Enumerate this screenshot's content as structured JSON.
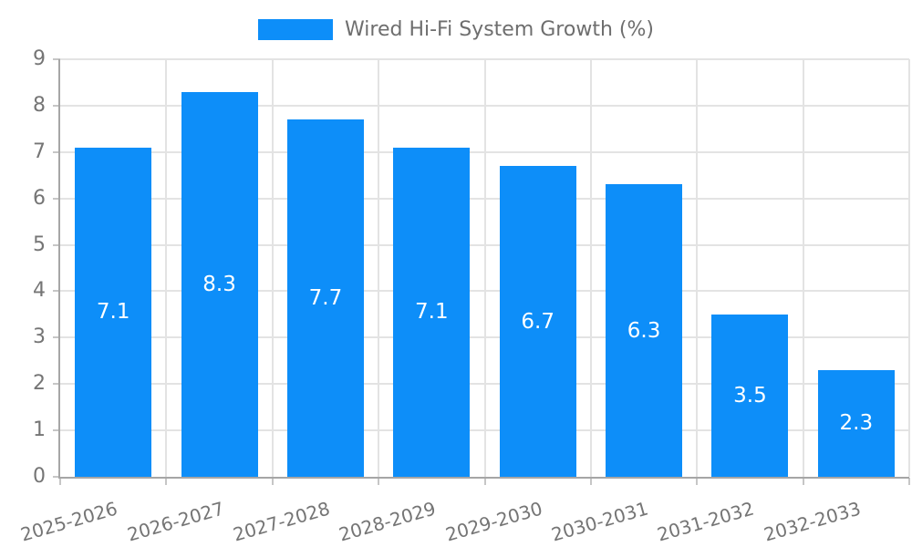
{
  "legend": {
    "label": "Wired Hi-Fi System Growth (%)"
  },
  "chart_data": {
    "type": "bar",
    "title": "Wired Hi-Fi System Growth (%)",
    "series_name": "Wired Hi-Fi System Growth (%)",
    "categories": [
      "2025-2026",
      "2026-2027",
      "2027-2028",
      "2028-2029",
      "2029-2030",
      "2030-2031",
      "2031-2032",
      "2032-2033"
    ],
    "values": [
      7.1,
      8.3,
      7.7,
      7.1,
      6.7,
      6.3,
      3.5,
      2.3
    ],
    "value_labels": [
      "7.1",
      "8.3",
      "7.7",
      "7.1",
      "6.7",
      "6.3",
      "3.5",
      "2.3"
    ],
    "xlabel": "",
    "ylabel": "",
    "ylim": [
      0,
      9
    ],
    "yticks": [
      0,
      1,
      2,
      3,
      4,
      5,
      6,
      7,
      8,
      9
    ],
    "grid": true,
    "legend_position": "top-center",
    "bar_label_position": "inside-center",
    "x_label_rotation_deg": -16,
    "colors": {
      "bar": "#0d8ef9",
      "bar_label": "#ffffff",
      "grid_line": "#e3e3e3",
      "axis_line": "#a6a6a6",
      "tick": "#c6c6c6",
      "axis_text": "#757575",
      "legend_text": "#6e6e6e"
    }
  }
}
